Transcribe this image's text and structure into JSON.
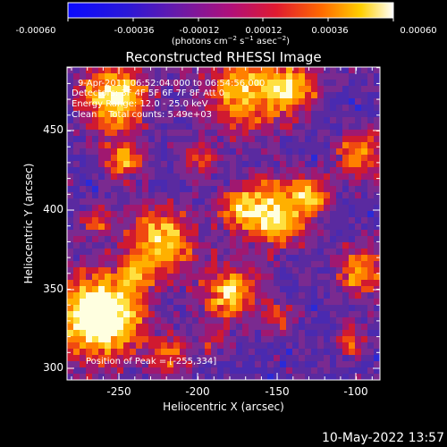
{
  "colorbar": {
    "tick_labels": [
      "-0.00060",
      "-0.00036",
      "-0.00012",
      "0.00012",
      "0.00036",
      "0.00060"
    ],
    "units_label": "(photons cm",
    "units_exp1": "−2",
    "units_mid": " s",
    "units_exp2": "−1",
    "units_end": " asec",
    "units_exp3": "−2",
    "units_close": ")"
  },
  "title": "Reconstructed RHESSI Image",
  "info": {
    "line1": "9-Apr-2011 06:52:04.000 to 06:54:56.000",
    "line2": "Detectors: 3F 4F 5F 6F 7F 8F  Att 0",
    "line3": "Energy Range: 12.0 - 25.0 keV",
    "line4_left": "Clean",
    "line4_right": "Total counts: 5.49e+03",
    "peak": "Position of Peak = [-255,334]"
  },
  "axes": {
    "xlabel": "Heliocentric X (arcsec)",
    "ylabel": "Heliocentric Y (arcsec)",
    "x_ticks": [
      "-250",
      "-200",
      "-150",
      "-100"
    ],
    "y_ticks": [
      "300",
      "350",
      "400",
      "450"
    ]
  },
  "timestamp": "10-May-2022 13:57"
}
